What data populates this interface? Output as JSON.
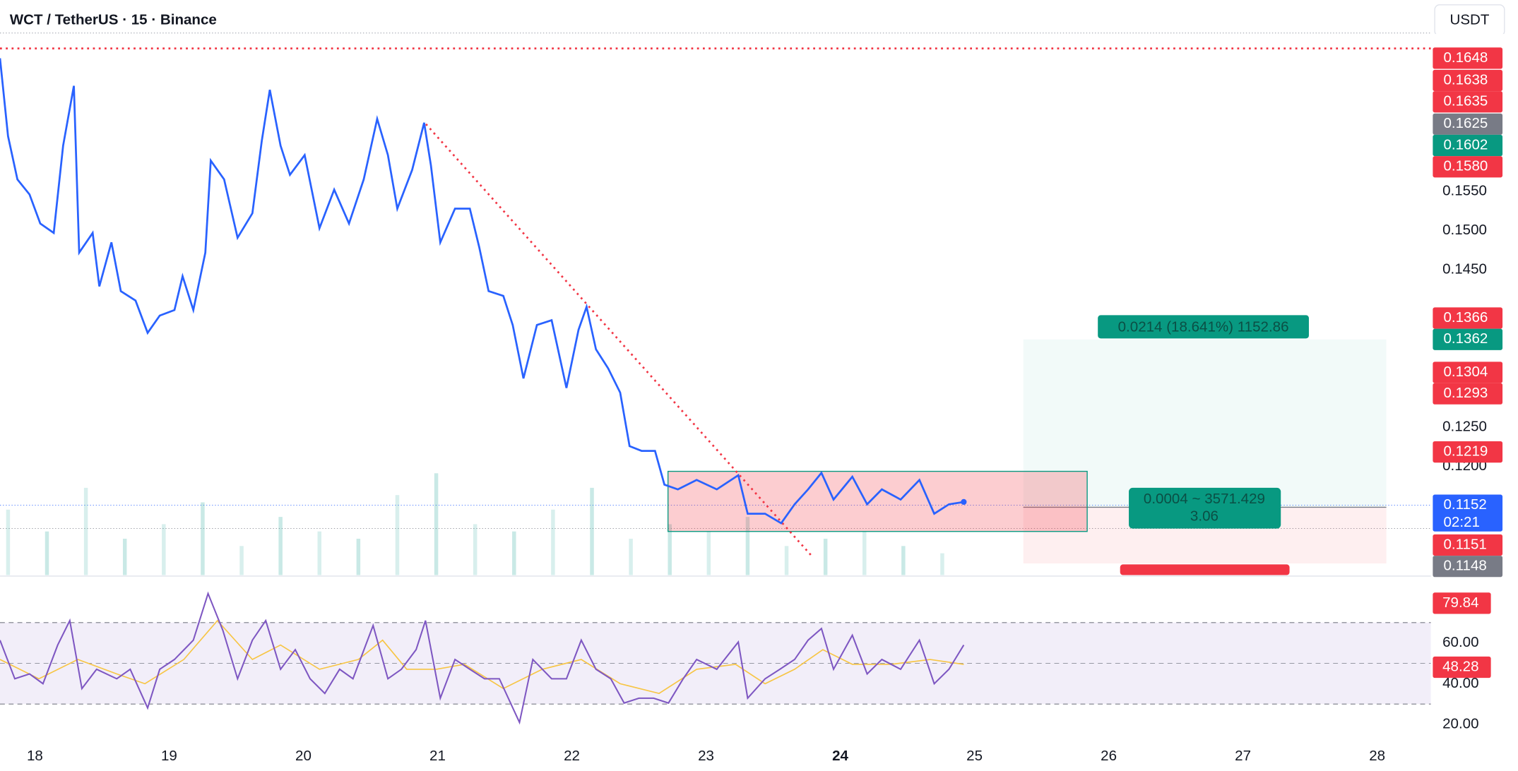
{
  "header": {
    "symbol": "WCT / TetherUS · 15 · Binance",
    "currency": "USDT"
  },
  "chart_data": [
    {
      "type": "line",
      "x": [
        17.74,
        17.8,
        17.87,
        17.96,
        18.04,
        18.14,
        18.21,
        18.29,
        18.33,
        18.43,
        18.48,
        18.57,
        18.64,
        18.75,
        18.84,
        18.93,
        19.04,
        19.1,
        19.18,
        19.27,
        19.31,
        19.41,
        19.51,
        19.62,
        19.69,
        19.75,
        19.83,
        19.9,
        20.01,
        20.12,
        20.23,
        20.34,
        20.45,
        20.55,
        20.63,
        20.7,
        20.81,
        20.9,
        20.95,
        21.02,
        21.13,
        21.24,
        21.31,
        21.38,
        21.49,
        21.56,
        21.64,
        21.74,
        21.85,
        21.96,
        22.05,
        22.11,
        22.18,
        22.27,
        22.36,
        22.43,
        22.52,
        22.62,
        22.69,
        22.79,
        22.93,
        23.08,
        23.24,
        23.31,
        23.44,
        23.56,
        23.66,
        23.76,
        23.86,
        23.95,
        24.09,
        24.2,
        24.31,
        24.45,
        24.59,
        24.7,
        24.81,
        24.92
      ],
      "values": [
        0.1719,
        0.162,
        0.1565,
        0.1546,
        0.1509,
        0.1497,
        0.1608,
        0.1684,
        0.1472,
        0.1497,
        0.1429,
        0.1485,
        0.1423,
        0.1411,
        0.137,
        0.1392,
        0.1399,
        0.1442,
        0.1399,
        0.1472,
        0.1589,
        0.1565,
        0.1491,
        0.1522,
        0.1614,
        0.1679,
        0.1608,
        0.1571,
        0.1596,
        0.1503,
        0.1552,
        0.1509,
        0.1565,
        0.1642,
        0.1596,
        0.1528,
        0.1577,
        0.1637,
        0.1583,
        0.1485,
        0.1528,
        0.1528,
        0.1479,
        0.1423,
        0.1417,
        0.138,
        0.1312,
        0.138,
        0.1386,
        0.13,
        0.1374,
        0.1403,
        0.1349,
        0.1325,
        0.1294,
        0.1226,
        0.122,
        0.122,
        0.1177,
        0.1171,
        0.1183,
        0.1171,
        0.1189,
        0.114,
        0.114,
        0.1128,
        0.1152,
        0.1171,
        0.1192,
        0.1158,
        0.1187,
        0.1152,
        0.1171,
        0.1158,
        0.1183,
        0.114,
        0.1152,
        0.1155
      ],
      "color": "#2962ff",
      "xlim": [
        17.74,
        28.4
      ],
      "xticks": [
        18,
        19,
        20,
        21,
        22,
        23,
        24,
        25,
        26,
        27,
        28
      ],
      "ylim": [
        0.1062,
        0.175
      ],
      "yticks": [
        {
          "value": 0.155,
          "label": "0.1550"
        },
        {
          "value": 0.15,
          "label": "0.1500"
        },
        {
          "value": 0.145,
          "label": "0.1450"
        },
        {
          "value": 0.125,
          "label": "0.1250"
        },
        {
          "value": 0.12,
          "label": "0.1200"
        }
      ],
      "volume": {
        "x": [
          17.8,
          18.09,
          18.38,
          18.67,
          18.96,
          19.25,
          19.54,
          19.83,
          20.12,
          20.41,
          20.7,
          20.99,
          21.28,
          21.57,
          21.86,
          22.15,
          22.44,
          22.73,
          23.02,
          23.31,
          23.6,
          23.89,
          24.18,
          24.47,
          24.76
        ],
        "values": [
          45,
          30,
          60,
          25,
          35,
          50,
          20,
          40,
          30,
          25,
          55,
          70,
          35,
          30,
          45,
          60,
          25,
          35,
          30,
          40,
          20,
          25,
          30,
          20,
          15
        ],
        "ylim": [
          0,
          100
        ],
        "color": "#26a69a"
      },
      "price_labels": [
        {
          "value": 0.1648,
          "label": "0.1648",
          "color": "#f23645"
        },
        {
          "value": 0.1638,
          "label": "0.1638",
          "color": "#f23645"
        },
        {
          "value": 0.1635,
          "label": "0.1635",
          "color": "#f23645"
        },
        {
          "value": 0.1625,
          "label": "0.1625",
          "color": "#787b86"
        },
        {
          "value": 0.1602,
          "label": "0.1602",
          "color": "#089981"
        },
        {
          "value": 0.158,
          "label": "0.1580",
          "color": "#f23645"
        },
        {
          "value": 0.1366,
          "label": "0.1366",
          "color": "#f23645"
        },
        {
          "value": 0.1362,
          "label": "0.1362",
          "color": "#089981"
        },
        {
          "value": 0.1304,
          "label": "0.1304",
          "color": "#f23645"
        },
        {
          "value": 0.1293,
          "label": "0.1293",
          "color": "#f23645"
        },
        {
          "value": 0.1219,
          "label": "0.1219",
          "color": "#f23645"
        },
        {
          "value": 0.1152,
          "label": "0.1152",
          "color": "#2962ff"
        },
        {
          "value": 0.1151,
          "label": "0.1151",
          "color": "#f23645"
        },
        {
          "value": 0.1148,
          "label": "0.1148",
          "color": "#787b86"
        }
      ],
      "countdown": "02:21",
      "annotations": [
        "0.0214 (18.641%) 1152.86",
        "0.0004 ~ 3571.429",
        "3.06"
      ]
    },
    {
      "type": "line",
      "series": [
        {
          "color": "#7e57c2",
          "x": [
            17.74,
            17.85,
            17.96,
            18.06,
            18.17,
            18.26,
            18.35,
            18.46,
            18.61,
            18.71,
            18.84,
            18.93,
            19.04,
            19.18,
            19.29,
            19.4,
            19.51,
            19.62,
            19.72,
            19.83,
            19.94,
            20.05,
            20.16,
            20.27,
            20.37,
            20.52,
            20.63,
            20.73,
            20.84,
            20.91,
            21.02,
            21.13,
            21.24,
            21.35,
            21.46,
            21.61,
            21.71,
            21.85,
            21.96,
            22.07,
            22.18,
            22.29,
            22.39,
            22.5,
            22.61,
            22.72,
            22.83,
            22.93,
            23.08,
            23.24,
            23.31,
            23.44,
            23.55,
            23.66,
            23.76,
            23.86,
            23.95,
            24.09,
            24.2,
            24.31,
            24.45,
            24.59,
            24.7,
            24.81,
            24.92
          ],
          "values": [
            61.4,
            42.4,
            44.8,
            40.0,
            59.0,
            71.0,
            37.6,
            47.1,
            42.4,
            47.1,
            28.1,
            47.1,
            51.9,
            61.4,
            84.3,
            66.2,
            42.4,
            61.4,
            71.0,
            47.1,
            56.7,
            42.4,
            35.2,
            47.1,
            42.4,
            68.6,
            42.4,
            47.1,
            56.7,
            71.0,
            32.9,
            51.9,
            47.1,
            42.4,
            42.4,
            21.0,
            51.9,
            42.4,
            42.4,
            61.4,
            47.1,
            42.4,
            30.5,
            32.9,
            32.9,
            30.5,
            42.4,
            51.9,
            47.1,
            60.5,
            32.9,
            42.4,
            47.1,
            51.9,
            61.4,
            67.1,
            47.1,
            63.8,
            44.8,
            51.9,
            47.1,
            61.4,
            40.0,
            47.1,
            59.0
          ]
        },
        {
          "color": "#f7c544",
          "x": [
            17.74,
            18.03,
            18.32,
            18.61,
            18.82,
            19.11,
            19.36,
            19.62,
            19.83,
            20.12,
            20.41,
            20.59,
            20.77,
            20.99,
            21.2,
            21.49,
            21.78,
            22.07,
            22.36,
            22.65,
            22.93,
            23.22,
            23.44,
            23.66,
            23.87,
            24.09,
            24.38,
            24.67,
            24.92
          ],
          "values": [
            51.9,
            42.4,
            51.9,
            44.8,
            40.0,
            51.9,
            71.0,
            51.9,
            59.0,
            47.1,
            51.9,
            61.4,
            47.1,
            47.1,
            49.5,
            37.6,
            47.1,
            51.9,
            40.0,
            35.2,
            47.1,
            49.5,
            40.0,
            47.1,
            56.7,
            49.5,
            49.5,
            51.9,
            49.5
          ]
        }
      ],
      "ylim": [
        11.4,
        92.4
      ],
      "yticks": [
        {
          "value": 60,
          "label": "60.00"
        },
        {
          "value": 40,
          "label": "40.00"
        },
        {
          "value": 20,
          "label": "20.00"
        }
      ],
      "bands": [
        30,
        70
      ],
      "midline": 50,
      "value_tags": [
        {
          "value": 79.84,
          "label": "79.84",
          "color": "#f23645"
        },
        {
          "value": 48.28,
          "label": "48.28",
          "color": "#f23645"
        }
      ]
    }
  ]
}
